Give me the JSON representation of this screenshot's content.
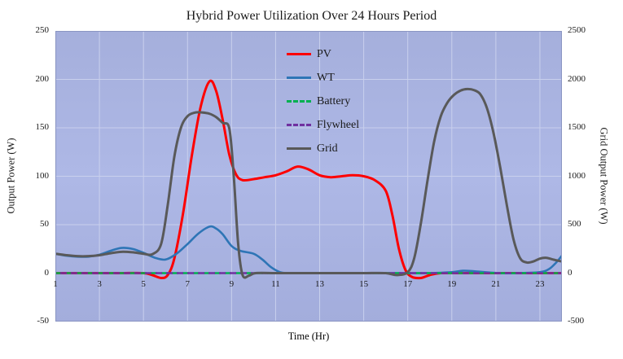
{
  "chart_data": {
    "type": "line",
    "title": "Hybrid Power Utilization Over 24 Hours Period",
    "xlabel": "Time (Hr)",
    "ylabel_left": "Output Power (W)",
    "ylabel_right": "Grid Output Power (W)",
    "xlim": [
      1,
      24
    ],
    "xticks": [
      1,
      3,
      5,
      7,
      9,
      11,
      13,
      15,
      17,
      19,
      21,
      23
    ],
    "ylim_left": [
      -50,
      250
    ],
    "yticks_left": [
      -50,
      0,
      50,
      100,
      150,
      200,
      250
    ],
    "ylim_right": [
      -500,
      2500
    ],
    "yticks_right": [
      -500,
      0,
      500,
      1000,
      1500,
      2000,
      2500
    ],
    "grid_on": true,
    "plot_bg": "#a9b3e0",
    "grid_color": "#c9d0ed",
    "legend_position": "inside-top-center",
    "legend": [
      "PV",
      "WT",
      "Battery",
      "Flywheel",
      "Grid"
    ],
    "series": [
      {
        "name": "PV",
        "color": "#ff0000",
        "style": "solid",
        "axis": "left",
        "width": 3,
        "points": [
          [
            1,
            0
          ],
          [
            2,
            0
          ],
          [
            3,
            0
          ],
          [
            4,
            0
          ],
          [
            5,
            0
          ],
          [
            5.4,
            -2
          ],
          [
            5.8,
            -5
          ],
          [
            6.1,
            -2
          ],
          [
            6.4,
            15
          ],
          [
            6.8,
            62
          ],
          [
            7.2,
            122
          ],
          [
            7.6,
            172
          ],
          [
            8,
            198
          ],
          [
            8.3,
            188
          ],
          [
            8.6,
            158
          ],
          [
            8.9,
            122
          ],
          [
            9.2,
            102
          ],
          [
            9.5,
            96
          ],
          [
            10,
            97
          ],
          [
            10.5,
            99
          ],
          [
            11,
            101
          ],
          [
            11.5,
            105
          ],
          [
            12,
            110
          ],
          [
            12.5,
            107
          ],
          [
            13,
            101
          ],
          [
            13.5,
            99
          ],
          [
            14,
            100
          ],
          [
            14.5,
            101
          ],
          [
            15,
            100
          ],
          [
            15.5,
            96
          ],
          [
            16,
            85
          ],
          [
            16.3,
            60
          ],
          [
            16.6,
            25
          ],
          [
            16.9,
            3
          ],
          [
            17.2,
            -4
          ],
          [
            17.6,
            -5
          ],
          [
            18,
            -2
          ],
          [
            18.5,
            0
          ],
          [
            19.5,
            0
          ],
          [
            21,
            0
          ],
          [
            22.5,
            0
          ],
          [
            24,
            0
          ]
        ]
      },
      {
        "name": "WT",
        "color": "#2e75b6",
        "style": "solid",
        "axis": "left",
        "width": 2.6,
        "points": [
          [
            1,
            20
          ],
          [
            1.5,
            18
          ],
          [
            2,
            17
          ],
          [
            2.5,
            17
          ],
          [
            3,
            19
          ],
          [
            3.5,
            23
          ],
          [
            4,
            26
          ],
          [
            4.5,
            25
          ],
          [
            5,
            21
          ],
          [
            5.5,
            16
          ],
          [
            6,
            14
          ],
          [
            6.5,
            20
          ],
          [
            7,
            30
          ],
          [
            7.5,
            41
          ],
          [
            8,
            48
          ],
          [
            8.3,
            46
          ],
          [
            8.6,
            40
          ],
          [
            9,
            28
          ],
          [
            9.4,
            23
          ],
          [
            10,
            20
          ],
          [
            10.4,
            14
          ],
          [
            10.8,
            6
          ],
          [
            11.2,
            1
          ],
          [
            11.6,
            0
          ],
          [
            12.5,
            0
          ],
          [
            14,
            0
          ],
          [
            16,
            0
          ],
          [
            18,
            0
          ],
          [
            19,
            1
          ],
          [
            19.5,
            2.5
          ],
          [
            20,
            2
          ],
          [
            20.5,
            1
          ],
          [
            21.2,
            0
          ],
          [
            22,
            0
          ],
          [
            23,
            1
          ],
          [
            23.4,
            4
          ],
          [
            23.7,
            10
          ],
          [
            24,
            18
          ]
        ]
      },
      {
        "name": "Battery",
        "color": "#00b050",
        "style": "dashed",
        "axis": "left",
        "width": 2.4,
        "points": [
          [
            1,
            0
          ],
          [
            4,
            0
          ],
          [
            8,
            0
          ],
          [
            12,
            0
          ],
          [
            16,
            0
          ],
          [
            20,
            0
          ],
          [
            24,
            0
          ]
        ]
      },
      {
        "name": "Flywheel",
        "color": "#7030a0",
        "style": "dashed",
        "axis": "left",
        "width": 2.4,
        "dash_offset": 7,
        "points": [
          [
            1,
            0
          ],
          [
            4,
            0
          ],
          [
            8,
            0
          ],
          [
            12,
            0
          ],
          [
            16,
            0
          ],
          [
            20,
            0
          ],
          [
            24,
            0
          ]
        ]
      },
      {
        "name": "Grid",
        "color": "#595959",
        "style": "solid",
        "axis": "right",
        "width": 3,
        "points": [
          [
            1,
            200
          ],
          [
            1.5,
            185
          ],
          [
            2,
            175
          ],
          [
            2.5,
            175
          ],
          [
            3,
            185
          ],
          [
            3.5,
            205
          ],
          [
            4,
            220
          ],
          [
            4.5,
            215
          ],
          [
            5,
            200
          ],
          [
            5.4,
            195
          ],
          [
            5.8,
            300
          ],
          [
            6.1,
            700
          ],
          [
            6.4,
            1200
          ],
          [
            6.7,
            1500
          ],
          [
            7,
            1620
          ],
          [
            7.3,
            1655
          ],
          [
            7.6,
            1660
          ],
          [
            8,
            1645
          ],
          [
            8.3,
            1610
          ],
          [
            8.6,
            1550
          ],
          [
            8.9,
            1490
          ],
          [
            9.1,
            1000
          ],
          [
            9.3,
            300
          ],
          [
            9.5,
            -20
          ],
          [
            9.8,
            -25
          ],
          [
            10.1,
            0
          ],
          [
            11,
            0
          ],
          [
            12,
            0
          ],
          [
            13,
            0
          ],
          [
            14,
            0
          ],
          [
            15,
            0
          ],
          [
            16,
            0
          ],
          [
            16.5,
            -20
          ],
          [
            17,
            10
          ],
          [
            17.3,
            160
          ],
          [
            17.6,
            520
          ],
          [
            17.9,
            960
          ],
          [
            18.2,
            1360
          ],
          [
            18.5,
            1620
          ],
          [
            18.8,
            1760
          ],
          [
            19.1,
            1840
          ],
          [
            19.4,
            1885
          ],
          [
            19.7,
            1900
          ],
          [
            20,
            1890
          ],
          [
            20.3,
            1845
          ],
          [
            20.6,
            1700
          ],
          [
            20.9,
            1440
          ],
          [
            21.2,
            1090
          ],
          [
            21.5,
            700
          ],
          [
            21.8,
            350
          ],
          [
            22.1,
            155
          ],
          [
            22.4,
            110
          ],
          [
            22.7,
            120
          ],
          [
            23,
            150
          ],
          [
            23.3,
            158
          ],
          [
            23.6,
            140
          ],
          [
            24,
            120
          ]
        ]
      }
    ]
  }
}
